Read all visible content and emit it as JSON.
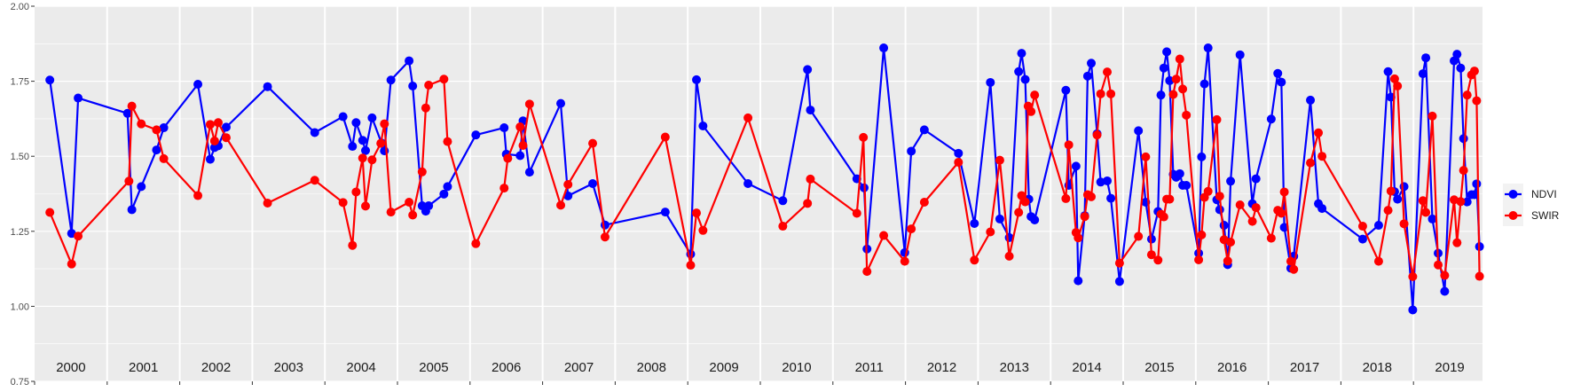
{
  "chart_data": {
    "type": "line",
    "title": "",
    "xlabel": "",
    "ylabel": "",
    "xlim": [
      2000,
      2019.95
    ],
    "ylim": [
      0.75,
      2.0
    ],
    "y_ticks": [
      "0.75",
      "1.00",
      "1.25",
      "1.50",
      "1.75",
      "2.00"
    ],
    "y_tick_values": [
      0.75,
      1.0,
      1.25,
      1.5,
      1.75,
      2.0
    ],
    "year_labels": [
      "2000",
      "2001",
      "2002",
      "2003",
      "2004",
      "2005",
      "2006",
      "2007",
      "2008",
      "2009",
      "2010",
      "2011",
      "2012",
      "2013",
      "2014",
      "2015",
      "2016",
      "2017",
      "2018",
      "2019"
    ],
    "grid": true,
    "legend_position": "right",
    "series": [
      {
        "name": "NDVI",
        "color": "#0000FF",
        "x": [
          2000.21,
          2000.51,
          2000.6,
          2001.28,
          2001.34,
          2001.47,
          2001.68,
          2001.78,
          2002.25,
          2002.42,
          2002.48,
          2002.53,
          2002.64,
          2003.21,
          2003.86,
          2004.25,
          2004.38,
          2004.43,
          2004.52,
          2004.56,
          2004.65,
          2004.78,
          2004.82,
          2004.91,
          2005.16,
          2005.21,
          2005.34,
          2005.39,
          2005.43,
          2005.64,
          2005.69,
          2006.08,
          2006.47,
          2006.5,
          2006.69,
          2006.73,
          2006.82,
          2007.25,
          2007.35,
          2007.69,
          2007.86,
          2008.69,
          2009.04,
          2009.12,
          2009.21,
          2009.83,
          2010.31,
          2010.65,
          2010.69,
          2011.33,
          2011.43,
          2011.47,
          2011.7,
          2011.99,
          2012.08,
          2012.26,
          2012.73,
          2012.95,
          2013.17,
          2013.3,
          2013.43,
          2013.56,
          2013.6,
          2013.65,
          2013.7,
          2013.73,
          2013.78,
          2014.21,
          2014.25,
          2014.35,
          2014.38,
          2014.47,
          2014.51,
          2014.56,
          2014.64,
          2014.69,
          2014.78,
          2014.83,
          2014.95,
          2015.21,
          2015.31,
          2015.39,
          2015.48,
          2015.52,
          2015.56,
          2015.6,
          2015.64,
          2015.69,
          2015.73,
          2015.78,
          2015.82,
          2015.87,
          2016.04,
          2016.08,
          2016.12,
          2016.17,
          2016.29,
          2016.33,
          2016.39,
          2016.44,
          2016.48,
          2016.61,
          2016.78,
          2016.83,
          2017.04,
          2017.13,
          2017.18,
          2017.22,
          2017.31,
          2017.35,
          2017.58,
          2017.69,
          2017.74,
          2018.3,
          2018.52,
          2018.65,
          2018.69,
          2018.74,
          2018.78,
          2018.87,
          2018.99,
          2019.13,
          2019.17,
          2019.26,
          2019.34,
          2019.43,
          2019.56,
          2019.6,
          2019.65,
          2019.69,
          2019.74,
          2019.8,
          2019.84,
          2019.87,
          2019.91
        ],
        "y": [
          1.754,
          1.243,
          1.694,
          1.643,
          1.322,
          1.399,
          1.521,
          1.595,
          1.74,
          1.49,
          1.529,
          1.535,
          1.597,
          1.732,
          1.579,
          1.632,
          1.533,
          1.612,
          1.553,
          1.519,
          1.628,
          1.544,
          1.518,
          1.754,
          1.818,
          1.734,
          1.335,
          1.317,
          1.335,
          1.374,
          1.399,
          1.571,
          1.595,
          1.507,
          1.502,
          1.618,
          1.447,
          1.676,
          1.368,
          1.409,
          1.271,
          1.314,
          1.174,
          1.755,
          1.601,
          1.409,
          1.352,
          1.789,
          1.654,
          1.425,
          1.395,
          1.191,
          1.861,
          1.179,
          1.517,
          1.588,
          1.51,
          1.276,
          1.746,
          1.291,
          1.229,
          1.782,
          1.843,
          1.756,
          1.357,
          1.299,
          1.288,
          1.72,
          1.403,
          1.467,
          1.085,
          1.302,
          1.767,
          1.81,
          1.575,
          1.414,
          1.418,
          1.36,
          1.083,
          1.585,
          1.347,
          1.224,
          1.316,
          1.704,
          1.794,
          1.848,
          1.752,
          1.44,
          1.43,
          1.442,
          1.403,
          1.403,
          1.177,
          1.498,
          1.741,
          1.861,
          1.355,
          1.322,
          1.27,
          1.139,
          1.417,
          1.838,
          1.342,
          1.425,
          1.624,
          1.776,
          1.747,
          1.263,
          1.127,
          1.167,
          1.687,
          1.342,
          1.326,
          1.224,
          1.27,
          1.782,
          1.697,
          1.382,
          1.357,
          1.399,
          0.988,
          1.775,
          1.828,
          1.291,
          1.177,
          1.05,
          1.818,
          1.84,
          1.794,
          1.559,
          1.348,
          1.372,
          1.372,
          1.408,
          1.199
        ]
      },
      {
        "name": "SWIR",
        "color": "#FF0000",
        "x": [
          2000.21,
          2000.51,
          2000.6,
          2001.3,
          2001.34,
          2001.47,
          2001.68,
          2001.78,
          2002.25,
          2002.42,
          2002.48,
          2002.53,
          2002.64,
          2003.21,
          2003.86,
          2004.25,
          2004.38,
          2004.43,
          2004.52,
          2004.56,
          2004.65,
          2004.77,
          2004.82,
          2004.91,
          2005.16,
          2005.21,
          2005.34,
          2005.39,
          2005.43,
          2005.64,
          2005.69,
          2006.08,
          2006.47,
          2006.52,
          2006.69,
          2006.73,
          2006.82,
          2007.25,
          2007.35,
          2007.69,
          2007.86,
          2008.69,
          2009.04,
          2009.12,
          2009.21,
          2009.83,
          2010.31,
          2010.65,
          2010.69,
          2011.33,
          2011.42,
          2011.47,
          2011.7,
          2011.99,
          2012.08,
          2012.26,
          2012.73,
          2012.95,
          2013.17,
          2013.3,
          2013.43,
          2013.56,
          2013.6,
          2013.65,
          2013.69,
          2013.73,
          2013.78,
          2014.21,
          2014.25,
          2014.35,
          2014.38,
          2014.47,
          2014.51,
          2014.56,
          2014.64,
          2014.69,
          2014.78,
          2014.83,
          2014.95,
          2015.21,
          2015.31,
          2015.39,
          2015.48,
          2015.52,
          2015.56,
          2015.6,
          2015.64,
          2015.69,
          2015.73,
          2015.78,
          2015.82,
          2015.87,
          2016.04,
          2016.08,
          2016.12,
          2016.17,
          2016.29,
          2016.33,
          2016.39,
          2016.44,
          2016.48,
          2016.61,
          2016.78,
          2016.83,
          2017.04,
          2017.13,
          2017.18,
          2017.22,
          2017.31,
          2017.35,
          2017.58,
          2017.69,
          2017.74,
          2018.3,
          2018.52,
          2018.65,
          2018.69,
          2018.74,
          2018.78,
          2018.87,
          2018.99,
          2019.13,
          2019.17,
          2019.26,
          2019.34,
          2019.43,
          2019.56,
          2019.6,
          2019.65,
          2019.69,
          2019.74,
          2019.8,
          2019.84,
          2019.87,
          2019.91
        ],
        "y": [
          1.313,
          1.141,
          1.234,
          1.417,
          1.667,
          1.608,
          1.588,
          1.492,
          1.369,
          1.606,
          1.551,
          1.612,
          1.562,
          1.344,
          1.42,
          1.346,
          1.203,
          1.381,
          1.494,
          1.334,
          1.488,
          1.543,
          1.608,
          1.314,
          1.347,
          1.304,
          1.448,
          1.661,
          1.737,
          1.757,
          1.549,
          1.209,
          1.394,
          1.493,
          1.598,
          1.536,
          1.674,
          1.337,
          1.406,
          1.543,
          1.231,
          1.564,
          1.137,
          1.311,
          1.253,
          1.628,
          1.267,
          1.343,
          1.424,
          1.31,
          1.563,
          1.116,
          1.236,
          1.15,
          1.258,
          1.347,
          1.48,
          1.154,
          1.248,
          1.487,
          1.167,
          1.313,
          1.369,
          1.348,
          1.667,
          1.649,
          1.704,
          1.359,
          1.538,
          1.246,
          1.228,
          1.299,
          1.372,
          1.365,
          1.571,
          1.708,
          1.781,
          1.708,
          1.144,
          1.233,
          1.498,
          1.172,
          1.154,
          1.307,
          1.298,
          1.357,
          1.357,
          1.706,
          1.757,
          1.824,
          1.724,
          1.637,
          1.155,
          1.238,
          1.363,
          1.383,
          1.622,
          1.367,
          1.222,
          1.151,
          1.214,
          1.338,
          1.283,
          1.329,
          1.227,
          1.32,
          1.31,
          1.381,
          1.15,
          1.123,
          1.478,
          1.578,
          1.5,
          1.267,
          1.15,
          1.32,
          1.384,
          1.758,
          1.734,
          1.275,
          1.099,
          1.352,
          1.313,
          1.634,
          1.138,
          1.103,
          1.355,
          1.212,
          1.349,
          1.453,
          1.704,
          1.771,
          1.784,
          1.685,
          1.1
        ]
      }
    ]
  },
  "colors": {
    "panel": "#EBEBEB",
    "grid": "#FFFFFF",
    "legend_key": "#F2F2F2"
  }
}
